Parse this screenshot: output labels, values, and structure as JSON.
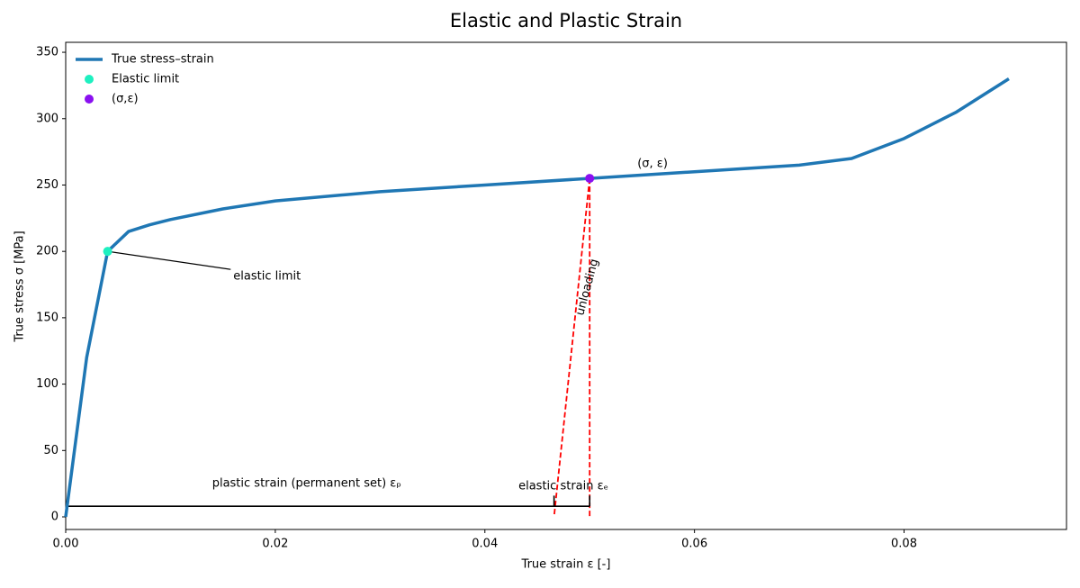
{
  "chart_data": {
    "type": "line",
    "title": "Elastic and Plastic Strain",
    "xlabel": "True strain ε [-]",
    "ylabel": "True stress σ [MPa]",
    "xlim": [
      0,
      0.0955
    ],
    "ylim": [
      -9.5,
      357.5
    ],
    "xticks": [
      {
        "value": 0,
        "label": "0.00"
      },
      {
        "value": 0.02,
        "label": "0.02"
      },
      {
        "value": 0.04,
        "label": "0.04"
      },
      {
        "value": 0.06,
        "label": "0.06"
      },
      {
        "value": 0.08,
        "label": "0.08"
      }
    ],
    "yticks": [
      0,
      50,
      100,
      150,
      200,
      250,
      300,
      350
    ],
    "legend": "upper left",
    "series": [
      {
        "name": "True stress–strain",
        "color": "#1f77b4",
        "style": "line",
        "x": [
          0,
          0.002,
          0.004,
          0.006,
          0.008,
          0.01,
          0.015,
          0.02,
          0.03,
          0.04,
          0.05,
          0.06,
          0.07,
          0.075,
          0.08,
          0.085,
          0.09
        ],
        "values": [
          0,
          120,
          200,
          215,
          220,
          224,
          232,
          238,
          245,
          250,
          255,
          260,
          265,
          270,
          285,
          305,
          330
        ]
      },
      {
        "name": "Elastic limit",
        "color": "#1ef0c0",
        "style": "marker",
        "x": [
          0.004
        ],
        "values": [
          200
        ]
      },
      {
        "name": "(σ,ε)",
        "color": "#8a10f0",
        "style": "marker",
        "x": [
          0.05
        ],
        "values": [
          255
        ]
      }
    ],
    "guides": [
      {
        "color": "red",
        "style": "dashed",
        "x": [
          0.05,
          0.0466
        ],
        "values": [
          255,
          0
        ]
      },
      {
        "color": "red",
        "style": "dashed",
        "x": [
          0.05,
          0.05
        ],
        "values": [
          255,
          0
        ]
      },
      {
        "color": "black",
        "style": "solid",
        "x": [
          0,
          0.05
        ],
        "values": [
          8,
          8
        ]
      },
      {
        "color": "black",
        "style": "solid",
        "x": [
          0.0466,
          0.0466
        ],
        "values": [
          8,
          16
        ]
      },
      {
        "color": "black",
        "style": "solid",
        "x": [
          0.05,
          0.05
        ],
        "values": [
          8,
          16
        ]
      }
    ],
    "annotations": [
      {
        "text": "elastic limit",
        "x": 0.016,
        "y": 181,
        "arrow_x": 0.004,
        "arrow_y": 200
      },
      {
        "text": "(σ, ε)",
        "x": 0.056,
        "y": 266
      },
      {
        "text": "unloading",
        "x": 0.0498,
        "y": 173,
        "rotation": -75
      },
      {
        "text": "plastic strain (permanent set)  εₚ",
        "x": 0.023,
        "y": 25
      },
      {
        "text": "elastic strain  εₑ",
        "x": 0.0475,
        "y": 23
      }
    ]
  }
}
